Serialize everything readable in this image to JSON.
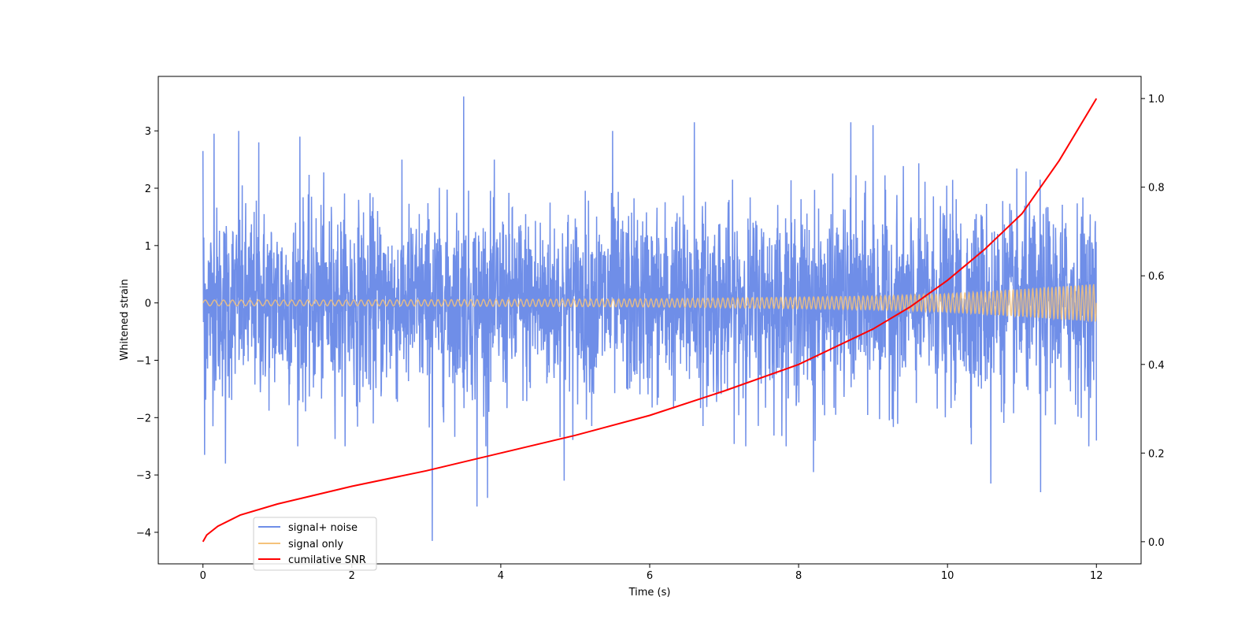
{
  "chart_data": {
    "type": "line",
    "xlabel": "Time (s)",
    "ylabel": "Whitened strain",
    "ylabel_right": "",
    "xlim": [
      -0.6,
      12.6
    ],
    "ylim": [
      -4.55,
      3.95
    ],
    "ylim_right": [
      -0.05,
      1.05
    ],
    "x_ticks": [
      0,
      2,
      4,
      6,
      8,
      10,
      12
    ],
    "y_ticks": [
      -4,
      -3,
      -2,
      -1,
      0,
      1,
      2,
      3
    ],
    "y_ticks_right": [
      0.0,
      0.2,
      0.4,
      0.6,
      0.8,
      1.0
    ],
    "x_tick_labels": [
      "0",
      "2",
      "4",
      "6",
      "8",
      "10",
      "12"
    ],
    "y_tick_labels": [
      "−4",
      "−3",
      "−2",
      "−1",
      "0",
      "1",
      "2",
      "3"
    ],
    "y_tick_labels_right": [
      "0.0",
      "0.2",
      "0.4",
      "0.6",
      "0.8",
      "1.0"
    ],
    "grid": false,
    "legend_position": "lower-left",
    "series": [
      {
        "name": "signal+ noise",
        "color": "#6f8ee8",
        "axis": "left",
        "description_values": {
          "x_range": [
            0,
            12
          ],
          "typical_band": [
            -1.6,
            1.6
          ],
          "peaks": [
            {
              "x": 0.0,
              "y": 2.65
            },
            {
              "x": 0.02,
              "y": -2.65
            },
            {
              "x": 0.15,
              "y": 2.95
            },
            {
              "x": 0.3,
              "y": -2.8
            },
            {
              "x": 0.48,
              "y": 3.0
            },
            {
              "x": 0.75,
              "y": 2.8
            },
            {
              "x": 1.3,
              "y": 2.9
            },
            {
              "x": 3.08,
              "y": -4.15
            },
            {
              "x": 3.5,
              "y": 3.6
            },
            {
              "x": 3.68,
              "y": -3.55
            },
            {
              "x": 3.82,
              "y": -3.4
            },
            {
              "x": 4.85,
              "y": -3.1
            },
            {
              "x": 5.5,
              "y": 3.0
            },
            {
              "x": 6.6,
              "y": 3.15
            },
            {
              "x": 8.2,
              "y": -2.95
            },
            {
              "x": 8.7,
              "y": 3.15
            },
            {
              "x": 9.0,
              "y": 3.1
            },
            {
              "x": 10.58,
              "y": -3.15
            },
            {
              "x": 11.25,
              "y": -3.3
            },
            {
              "x": 12.0,
              "y": -2.4
            }
          ]
        }
      },
      {
        "name": "signal only",
        "color": "#f5c27a",
        "axis": "left",
        "envelope": [
          {
            "x": 0,
            "amplitude": 0.05
          },
          {
            "x": 2,
            "amplitude": 0.05
          },
          {
            "x": 4,
            "amplitude": 0.06
          },
          {
            "x": 6,
            "amplitude": 0.07
          },
          {
            "x": 8,
            "amplitude": 0.1
          },
          {
            "x": 9,
            "amplitude": 0.12
          },
          {
            "x": 10,
            "amplitude": 0.16
          },
          {
            "x": 11,
            "amplitude": 0.24
          },
          {
            "x": 12,
            "amplitude": 0.33
          }
        ]
      },
      {
        "name": "cumilative SNR",
        "color": "#ff0000",
        "axis": "right",
        "x": [
          0,
          0.05,
          0.2,
          0.5,
          1,
          2,
          3,
          4,
          5,
          6,
          7,
          8,
          9,
          9.5,
          10,
          10.5,
          11,
          11.5,
          12
        ],
        "values": [
          0.0,
          0.015,
          0.035,
          0.06,
          0.085,
          0.125,
          0.16,
          0.2,
          0.24,
          0.285,
          0.34,
          0.4,
          0.48,
          0.53,
          0.59,
          0.66,
          0.74,
          0.86,
          1.0
        ]
      }
    ]
  }
}
